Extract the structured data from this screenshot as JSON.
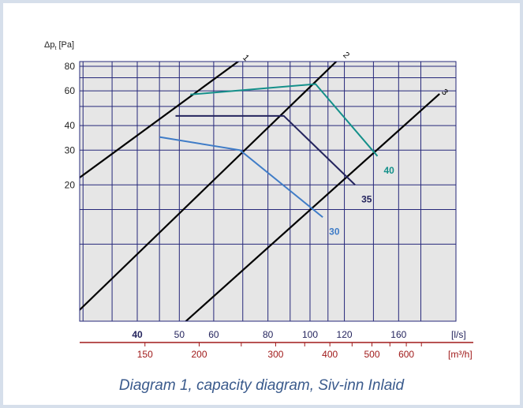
{
  "caption": "Diagram 1, capacity diagram, Siv-inn Inlaid",
  "chart_data": {
    "type": "line",
    "ylabel_main": "Δp",
    "ylabel_sub": "t",
    "ylabel_unit": " [Pa]",
    "xlabel_primary": "[l/s]",
    "xlabel_secondary": "[m³/h]",
    "y_ticks": [
      20,
      30,
      40,
      60,
      80
    ],
    "x_ticks_ls": [
      40,
      50,
      60,
      80,
      100,
      120,
      160
    ],
    "x_ticks_m3h": [
      150,
      200,
      300,
      400,
      500,
      600
    ],
    "log_scale": true,
    "grid": true,
    "colors": {
      "background": "#e6e6e6",
      "grid": "#26287a",
      "axis_red": "#a01a1a",
      "reference_lines": "#000000"
    },
    "reference_lines": [
      {
        "label": "1",
        "points": [
          [
            25,
            16.7
          ],
          [
            66,
            80
          ]
        ]
      },
      {
        "label": "2",
        "points": [
          [
            40,
            8.9
          ],
          [
            112,
            80
          ]
        ]
      },
      {
        "label": "3",
        "points": [
          [
            77,
            8.9
          ],
          [
            190,
            53
          ]
        ]
      }
    ],
    "series": [
      {
        "name": "40",
        "color": "#14908a",
        "points": [
          [
            53,
            57.5
          ],
          [
            103,
            65
          ],
          [
            143,
            28
          ]
        ]
      },
      {
        "name": "35",
        "color": "#25255e",
        "points": [
          [
            49,
            44.8
          ],
          [
            87,
            44.8
          ],
          [
            127,
            20
          ]
        ]
      },
      {
        "name": "30",
        "color": "#3f7cc7",
        "points": [
          [
            45,
            35
          ],
          [
            69,
            30
          ],
          [
            107,
            13.7
          ]
        ]
      }
    ]
  }
}
